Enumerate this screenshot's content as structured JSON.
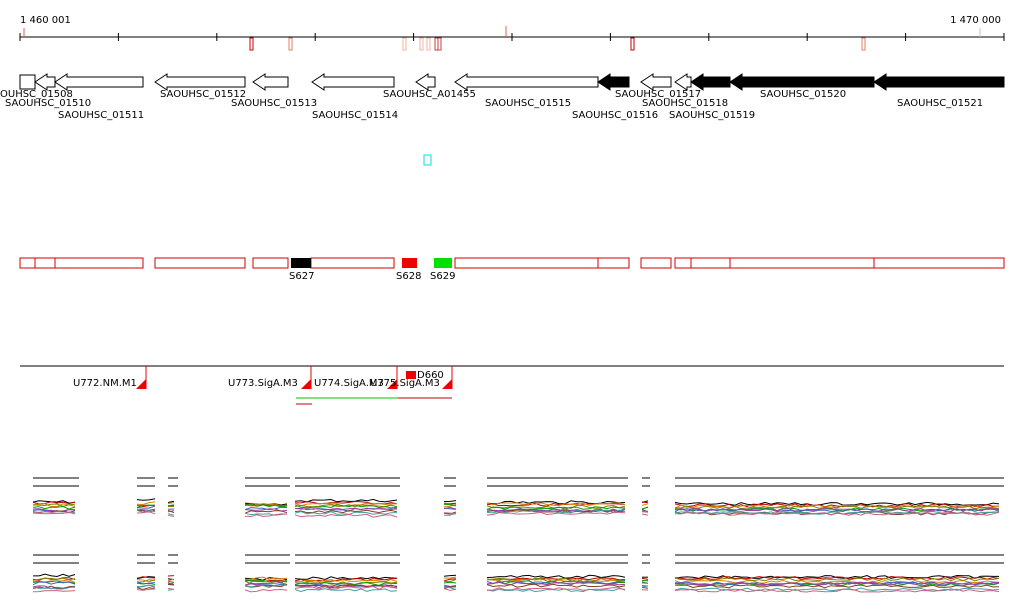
{
  "ruler": {
    "start_label": "1 460 001",
    "end_label": "1 470 000"
  },
  "genes": [
    "OUHSC_01508",
    "SAOUHSC_01510",
    "SAOUHSC_01511",
    "SAOUHSC_01512",
    "SAOUHSC_01513",
    "SAOUHSC_01514",
    "SAOUHSC_A01455",
    "SAOUHSC_01515",
    "SAOUHSC_01516",
    "SAOUHSC_01517",
    "SAOUHSC_01518",
    "SAOUHSC_01519",
    "SAOUHSC_01520",
    "SAOUHSC_01521"
  ],
  "segments": [
    "S627",
    "S628",
    "S629"
  ],
  "units": [
    "U772.NM.M1",
    "U773.SigA.M3",
    "U774.SigA.M3",
    "U775.SigA.M3"
  ],
  "marker": "D660"
}
